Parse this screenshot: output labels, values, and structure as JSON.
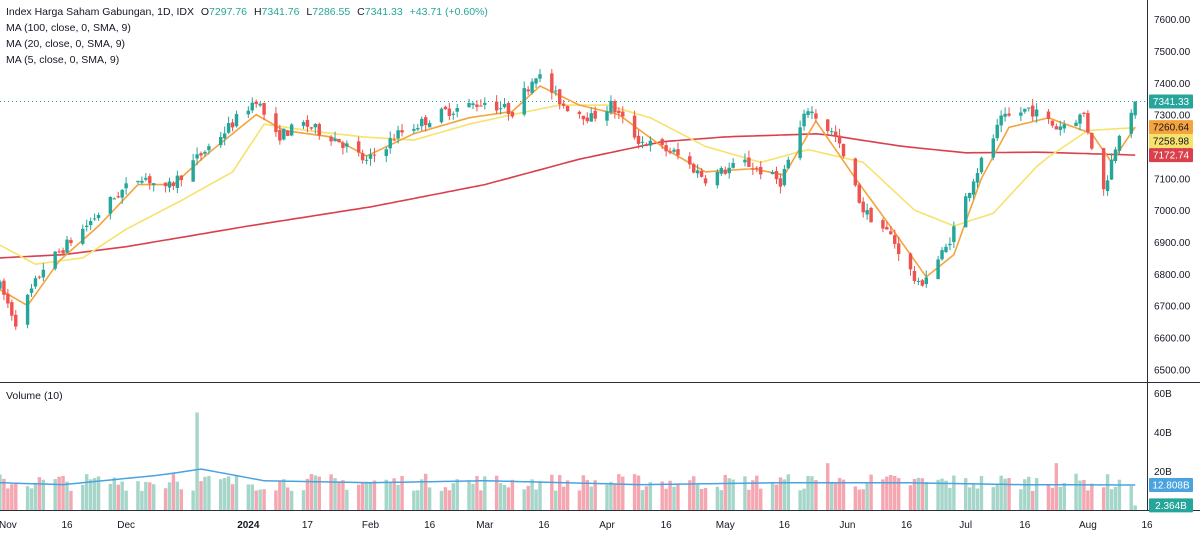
{
  "legend": {
    "title": "Index Harga Saham Gabungan, 1D, IDX",
    "open_label": "O",
    "open": "7297.76",
    "high_label": "H",
    "high": "7341.76",
    "low_label": "L",
    "low": "7286.55",
    "close_label": "C",
    "close": "7341.33",
    "change": "+43.71 (+0.60%)",
    "ma100": "MA (100, close, 0, SMA, 9)",
    "ma20": "MA (20, close, 0, SMA, 9)",
    "ma5": "MA (5, close, 0, SMA, 9)"
  },
  "volume_title": "Volume (10)",
  "colors": {
    "up": "#26a69a",
    "down": "#ef5350",
    "vol_up": "#a5d6c9",
    "vol_down": "#f4a7b1",
    "ma100": "#d9404b",
    "ma20": "#f7e26b",
    "ma5": "#f5a33c",
    "vol_ma": "#4aa3df"
  },
  "chart_data": [
    {
      "type": "candlestick",
      "title": "",
      "y_axis": {
        "position": "right",
        "ylim": [
          6460,
          7660
        ],
        "ticks": [
          "7600.00",
          "7500.00",
          "7400.00",
          "7300.00",
          "7200.00",
          "7100.00",
          "7000.00",
          "6900.00",
          "6800.00",
          "6700.00",
          "6600.00",
          "6500.00"
        ]
      },
      "x_axis": {
        "range": [
          "2023-10-30",
          "2024-08-16"
        ],
        "ticks": [
          {
            "date": "2023-11-01",
            "label": "Nov",
            "bold": false
          },
          {
            "date": "2023-11-16",
            "label": "16",
            "bold": false
          },
          {
            "date": "2023-12-01",
            "label": "Dec",
            "bold": false
          },
          {
            "date": "2024-01-01",
            "label": "2024",
            "bold": true
          },
          {
            "date": "2024-01-16",
            "label": "17",
            "bold": false
          },
          {
            "date": "2024-02-01",
            "label": "Feb",
            "bold": false
          },
          {
            "date": "2024-02-16",
            "label": "16",
            "bold": false
          },
          {
            "date": "2024-03-01",
            "label": "Mar",
            "bold": false
          },
          {
            "date": "2024-03-16",
            "label": "16",
            "bold": false
          },
          {
            "date": "2024-04-01",
            "label": "Apr",
            "bold": false
          },
          {
            "date": "2024-04-16",
            "label": "16",
            "bold": false
          },
          {
            "date": "2024-05-01",
            "label": "May",
            "bold": false
          },
          {
            "date": "2024-05-16",
            "label": "16",
            "bold": false
          },
          {
            "date": "2024-06-01",
            "label": "Jun",
            "bold": false
          },
          {
            "date": "2024-06-16",
            "label": "16",
            "bold": false
          },
          {
            "date": "2024-07-01",
            "label": "Jul",
            "bold": false
          },
          {
            "date": "2024-07-16",
            "label": "16",
            "bold": false
          },
          {
            "date": "2024-08-01",
            "label": "Aug",
            "bold": false
          },
          {
            "date": "2024-08-16",
            "label": "16",
            "bold": false
          }
        ]
      },
      "last_price_line": 7341.33,
      "price_labels": [
        {
          "value": 7341.33,
          "text": "7341.33",
          "color": "#26a69a",
          "fg": "#ffffff"
        },
        {
          "value": 7260.64,
          "text": "7260.64",
          "color": "#f5a33c",
          "fg": "#131722"
        },
        {
          "value": 7258.98,
          "text": "7258.98",
          "color": "#f7e26b",
          "fg": "#131722"
        },
        {
          "value": 7172.74,
          "text": "7172.74",
          "color": "#d9404b",
          "fg": "#ffffff"
        }
      ],
      "series": [
        {
          "name": "Index Harga Saham Gabungan",
          "kind": "ohlc",
          "waypoints": [
            {
              "x": "2023-10-30",
              "y": 6760
            },
            {
              "x": "2023-11-03",
              "y": 6650
            },
            {
              "x": "2023-11-10",
              "y": 6820
            },
            {
              "x": "2023-11-20",
              "y": 6940
            },
            {
              "x": "2023-11-28",
              "y": 7040
            },
            {
              "x": "2023-12-05",
              "y": 7110
            },
            {
              "x": "2023-12-11",
              "y": 7060
            },
            {
              "x": "2023-12-18",
              "y": 7150
            },
            {
              "x": "2023-12-27",
              "y": 7260
            },
            {
              "x": "2024-01-03",
              "y": 7350
            },
            {
              "x": "2024-01-08",
              "y": 7230
            },
            {
              "x": "2024-01-15",
              "y": 7270
            },
            {
              "x": "2024-01-24",
              "y": 7220
            },
            {
              "x": "2024-01-31",
              "y": 7150
            },
            {
              "x": "2024-02-08",
              "y": 7240
            },
            {
              "x": "2024-02-20",
              "y": 7310
            },
            {
              "x": "2024-03-01",
              "y": 7340
            },
            {
              "x": "2024-03-08",
              "y": 7310
            },
            {
              "x": "2024-03-14",
              "y": 7430
            },
            {
              "x": "2024-03-21",
              "y": 7330
            },
            {
              "x": "2024-03-28",
              "y": 7290
            },
            {
              "x": "2024-04-02",
              "y": 7330
            },
            {
              "x": "2024-04-09",
              "y": 7220
            },
            {
              "x": "2024-04-18",
              "y": 7180
            },
            {
              "x": "2024-04-26",
              "y": 7100
            },
            {
              "x": "2024-05-06",
              "y": 7150
            },
            {
              "x": "2024-05-15",
              "y": 7090
            },
            {
              "x": "2024-05-22",
              "y": 7320
            },
            {
              "x": "2024-05-29",
              "y": 7230
            },
            {
              "x": "2024-06-05",
              "y": 7000
            },
            {
              "x": "2024-06-12",
              "y": 6920
            },
            {
              "x": "2024-06-19",
              "y": 6760
            },
            {
              "x": "2024-06-26",
              "y": 6880
            },
            {
              "x": "2024-07-03",
              "y": 7100
            },
            {
              "x": "2024-07-10",
              "y": 7280
            },
            {
              "x": "2024-07-17",
              "y": 7320
            },
            {
              "x": "2024-07-24",
              "y": 7260
            },
            {
              "x": "2024-07-31",
              "y": 7300
            },
            {
              "x": "2024-08-05",
              "y": 7060
            },
            {
              "x": "2024-08-09",
              "y": 7250
            },
            {
              "x": "2024-08-13",
              "y": 7341
            }
          ]
        },
        {
          "name": "MA (100, close, 0, SMA, 9)",
          "kind": "line",
          "color": "#d9404b",
          "points": [
            {
              "x": "2023-10-30",
              "y": 6850
            },
            {
              "x": "2023-11-15",
              "y": 6860
            },
            {
              "x": "2023-12-01",
              "y": 6885
            },
            {
              "x": "2024-01-01",
              "y": 6950
            },
            {
              "x": "2024-02-01",
              "y": 7010
            },
            {
              "x": "2024-03-01",
              "y": 7080
            },
            {
              "x": "2024-03-25",
              "y": 7160
            },
            {
              "x": "2024-04-15",
              "y": 7215
            },
            {
              "x": "2024-05-01",
              "y": 7230
            },
            {
              "x": "2024-05-25",
              "y": 7240
            },
            {
              "x": "2024-06-15",
              "y": 7200
            },
            {
              "x": "2024-07-01",
              "y": 7180
            },
            {
              "x": "2024-07-20",
              "y": 7182
            },
            {
              "x": "2024-08-13",
              "y": 7172.74
            }
          ]
        },
        {
          "name": "MA (20, close, 0, SMA, 9)",
          "kind": "line",
          "color": "#f7e26b",
          "points": [
            {
              "x": "2023-10-30",
              "y": 6890
            },
            {
              "x": "2023-11-08",
              "y": 6830
            },
            {
              "x": "2023-11-20",
              "y": 6850
            },
            {
              "x": "2023-12-01",
              "y": 6940
            },
            {
              "x": "2023-12-15",
              "y": 7030
            },
            {
              "x": "2023-12-28",
              "y": 7120
            },
            {
              "x": "2024-01-05",
              "y": 7270
            },
            {
              "x": "2024-01-16",
              "y": 7250
            },
            {
              "x": "2024-01-30",
              "y": 7230
            },
            {
              "x": "2024-02-12",
              "y": 7220
            },
            {
              "x": "2024-02-26",
              "y": 7270
            },
            {
              "x": "2024-03-08",
              "y": 7300
            },
            {
              "x": "2024-03-20",
              "y": 7330
            },
            {
              "x": "2024-04-01",
              "y": 7330
            },
            {
              "x": "2024-04-12",
              "y": 7290
            },
            {
              "x": "2024-04-26",
              "y": 7200
            },
            {
              "x": "2024-05-10",
              "y": 7150
            },
            {
              "x": "2024-05-22",
              "y": 7190
            },
            {
              "x": "2024-06-05",
              "y": 7150
            },
            {
              "x": "2024-06-18",
              "y": 7000
            },
            {
              "x": "2024-06-28",
              "y": 6950
            },
            {
              "x": "2024-07-08",
              "y": 6990
            },
            {
              "x": "2024-07-20",
              "y": 7150
            },
            {
              "x": "2024-08-01",
              "y": 7250
            },
            {
              "x": "2024-08-13",
              "y": 7258.98
            }
          ]
        },
        {
          "name": "MA (5, close, 0, SMA, 9)",
          "kind": "line",
          "color": "#f5a33c",
          "points": [
            {
              "x": "2023-10-30",
              "y": 6750
            },
            {
              "x": "2023-11-06",
              "y": 6700
            },
            {
              "x": "2023-11-14",
              "y": 6840
            },
            {
              "x": "2023-11-24",
              "y": 6950
            },
            {
              "x": "2023-12-04",
              "y": 7080
            },
            {
              "x": "2023-12-13",
              "y": 7080
            },
            {
              "x": "2023-12-22",
              "y": 7180
            },
            {
              "x": "2024-01-03",
              "y": 7300
            },
            {
              "x": "2024-01-10",
              "y": 7250
            },
            {
              "x": "2024-01-22",
              "y": 7230
            },
            {
              "x": "2024-01-31",
              "y": 7170
            },
            {
              "x": "2024-02-12",
              "y": 7240
            },
            {
              "x": "2024-02-26",
              "y": 7290
            },
            {
              "x": "2024-03-08",
              "y": 7310
            },
            {
              "x": "2024-03-15",
              "y": 7390
            },
            {
              "x": "2024-03-25",
              "y": 7330
            },
            {
              "x": "2024-04-04",
              "y": 7300
            },
            {
              "x": "2024-04-16",
              "y": 7190
            },
            {
              "x": "2024-04-26",
              "y": 7120
            },
            {
              "x": "2024-05-08",
              "y": 7130
            },
            {
              "x": "2024-05-16",
              "y": 7110
            },
            {
              "x": "2024-05-24",
              "y": 7280
            },
            {
              "x": "2024-06-03",
              "y": 7100
            },
            {
              "x": "2024-06-13",
              "y": 6930
            },
            {
              "x": "2024-06-21",
              "y": 6790
            },
            {
              "x": "2024-06-28",
              "y": 6860
            },
            {
              "x": "2024-07-05",
              "y": 7100
            },
            {
              "x": "2024-07-12",
              "y": 7260
            },
            {
              "x": "2024-07-22",
              "y": 7290
            },
            {
              "x": "2024-08-02",
              "y": 7240
            },
            {
              "x": "2024-08-07",
              "y": 7150
            },
            {
              "x": "2024-08-13",
              "y": 7260.64
            }
          ]
        }
      ]
    },
    {
      "type": "bar",
      "title": "Volume (10)",
      "y_axis": {
        "position": "right",
        "ylim": [
          0,
          60
        ],
        "unit": "B",
        "ticks": [
          "60B",
          "40B",
          "20B"
        ]
      },
      "last_values": [
        {
          "value": 12.808,
          "text": "12.808B",
          "color": "#4aa3df",
          "fg": "#ffffff"
        },
        {
          "value": 2.364,
          "text": "2.364B",
          "color": "#26a69a",
          "fg": "#ffffff"
        }
      ],
      "series": [
        {
          "name": "Volume",
          "kind": "bars",
          "typical": 15,
          "spikes": [
            {
              "x": "2023-12-19",
              "y": 50
            },
            {
              "x": "2023-12-13",
              "y": 19
            },
            {
              "x": "2024-05-27",
              "y": 24
            },
            {
              "x": "2024-07-24",
              "y": 24
            },
            {
              "x": "2024-08-13",
              "y": 2.364
            }
          ]
        },
        {
          "name": "Volume MA",
          "kind": "line",
          "color": "#4aa3df",
          "points": [
            {
              "x": "2023-10-30",
              "y": 14
            },
            {
              "x": "2023-11-15",
              "y": 13
            },
            {
              "x": "2023-12-10",
              "y": 18
            },
            {
              "x": "2023-12-20",
              "y": 21
            },
            {
              "x": "2024-01-05",
              "y": 15
            },
            {
              "x": "2024-02-01",
              "y": 14
            },
            {
              "x": "2024-03-01",
              "y": 15
            },
            {
              "x": "2024-04-10",
              "y": 13
            },
            {
              "x": "2024-05-15",
              "y": 14
            },
            {
              "x": "2024-06-15",
              "y": 14
            },
            {
              "x": "2024-07-15",
              "y": 13
            },
            {
              "x": "2024-08-13",
              "y": 12.808
            }
          ]
        }
      ]
    }
  ]
}
